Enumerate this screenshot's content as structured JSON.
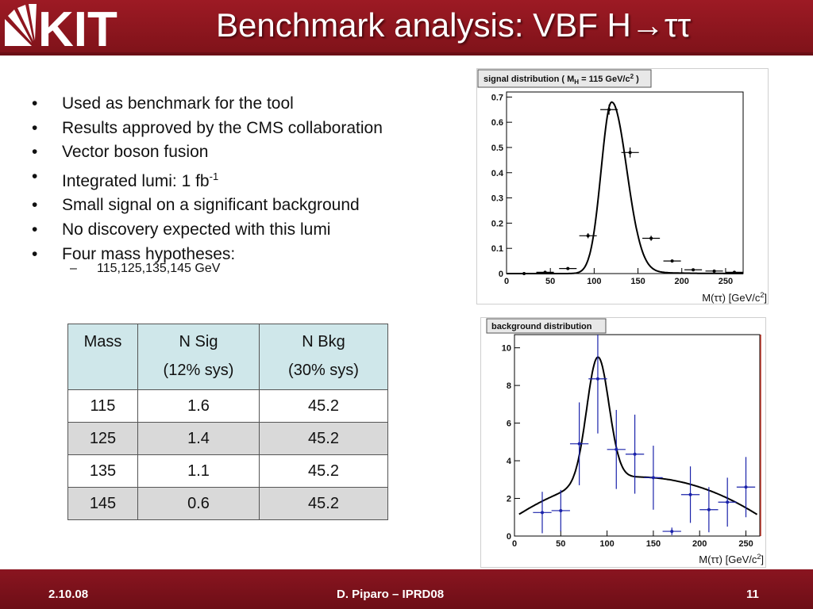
{
  "header": {
    "title": "Benchmark analysis: VBF H→ττ",
    "logo_text": "KIT"
  },
  "bullets": [
    {
      "text": "Used as benchmark for the tool",
      "sup": ""
    },
    {
      "text": "Results approved by the CMS collaboration",
      "sup": ""
    },
    {
      "text": "Vector boson fusion",
      "sup": ""
    },
    {
      "text": "Integrated lumi: 1 fb",
      "sup": "-1"
    },
    {
      "text": "Small signal on a significant background",
      "sup": ""
    },
    {
      "text": "No discovery expected with this lumi",
      "sup": ""
    },
    {
      "text": "Four mass hypotheses:",
      "sup": ""
    }
  ],
  "bullet_marker": "•",
  "sub_bullet": {
    "marker": "–",
    "text": "115,125,135,145 GeV"
  },
  "table": {
    "headers": [
      {
        "line1": "Mass",
        "line2": ""
      },
      {
        "line1": "N Sig",
        "line2": "(12% sys)"
      },
      {
        "line1": "N Bkg",
        "line2": "(30% sys)"
      }
    ],
    "rows": [
      [
        "115",
        "1.6",
        "45.2"
      ],
      [
        "125",
        "1.4",
        "45.2"
      ],
      [
        "135",
        "1.1",
        "45.2"
      ],
      [
        "145",
        "0.6",
        "45.2"
      ]
    ]
  },
  "chart_data": [
    {
      "type": "scatter",
      "title_prefix": "signal distribution ( M",
      "title_sub": "H",
      "title_suffix": " = 115 GeV/c",
      "title_sup": "2",
      "title_end": " )",
      "xlabel": "M(ττ) [GeV/c",
      "xlabel_sup": "2",
      "xlabel_end": "]",
      "xlim": [
        0,
        270
      ],
      "ylim": [
        0,
        0.72
      ],
      "xticks": [
        0,
        50,
        100,
        150,
        200,
        250
      ],
      "yticks": [
        0,
        0.1,
        0.2,
        0.3,
        0.4,
        0.5,
        0.6,
        0.7
      ],
      "ytick_labels": [
        "0",
        "0.1",
        "0.2",
        "0.3",
        "0.4",
        "0.5",
        "0.6",
        "0.7"
      ],
      "points": [
        {
          "x": 20,
          "y": 0.0,
          "xerr": 10,
          "yerr": 0
        },
        {
          "x": 44,
          "y": 0.005,
          "xerr": 10,
          "yerr": 0
        },
        {
          "x": 70,
          "y": 0.02,
          "xerr": 10,
          "yerr": 0.005
        },
        {
          "x": 93,
          "y": 0.15,
          "xerr": 10,
          "yerr": 0.01
        },
        {
          "x": 117,
          "y": 0.65,
          "xerr": 10,
          "yerr": 0.02
        },
        {
          "x": 141,
          "y": 0.48,
          "xerr": 10,
          "yerr": 0.02
        },
        {
          "x": 165,
          "y": 0.14,
          "xerr": 10,
          "yerr": 0.01
        },
        {
          "x": 189,
          "y": 0.05,
          "xerr": 10,
          "yerr": 0.005
        },
        {
          "x": 213,
          "y": 0.015,
          "xerr": 10,
          "yerr": 0
        },
        {
          "x": 237,
          "y": 0.01,
          "xerr": 10,
          "yerr": 0
        },
        {
          "x": 260,
          "y": 0.005,
          "xerr": 10,
          "yerr": 0
        }
      ],
      "fit": {
        "peak": 120,
        "amplitude": 0.68,
        "sigma_left": 12,
        "sigma_right": 17,
        "tail": 0.018,
        "tail_decay": 35
      }
    },
    {
      "type": "scatter",
      "title": "background distribution",
      "xlabel": "M(ττ) [GeV/c",
      "xlabel_sup": "2",
      "xlabel_end": "]",
      "xlim": [
        0,
        265
      ],
      "ylim": [
        0,
        10.7
      ],
      "xticks": [
        0,
        50,
        100,
        150,
        200,
        250
      ],
      "yticks": [
        0,
        2,
        4,
        6,
        8,
        10
      ],
      "ytick_labels": [
        "0",
        "2",
        "4",
        "6",
        "8",
        "10"
      ],
      "points": [
        {
          "x": 30,
          "y": 1.25,
          "xerr": 10,
          "yerr": 1.1
        },
        {
          "x": 50,
          "y": 1.35,
          "xerr": 10,
          "yerr": 1.1
        },
        {
          "x": 70,
          "y": 4.9,
          "xerr": 10,
          "yerr": 2.2
        },
        {
          "x": 90,
          "y": 8.35,
          "xerr": 10,
          "yerr": 2.9
        },
        {
          "x": 110,
          "y": 4.6,
          "xerr": 10,
          "yerr": 2.1
        },
        {
          "x": 130,
          "y": 4.35,
          "xerr": 10,
          "yerr": 2.1
        },
        {
          "x": 150,
          "y": 3.1,
          "xerr": 10,
          "yerr": 1.7
        },
        {
          "x": 170,
          "y": 0.25,
          "xerr": 10,
          "yerr": 0.2
        },
        {
          "x": 190,
          "y": 2.2,
          "xerr": 10,
          "yerr": 1.5
        },
        {
          "x": 210,
          "y": 1.4,
          "xerr": 10,
          "yerr": 1.2
        },
        {
          "x": 230,
          "y": 1.8,
          "xerr": 10,
          "yerr": 1.3
        },
        {
          "x": 250,
          "y": 2.6,
          "xerr": 10,
          "yerr": 1.6
        }
      ],
      "fit": {
        "peak": 90,
        "amplitude": 6.6,
        "sigma_left": 12,
        "sigma_right": 12
      }
    }
  ],
  "footer": {
    "date": "2.10.08",
    "author": "D. Piparo – IPRD08",
    "page": "11"
  }
}
